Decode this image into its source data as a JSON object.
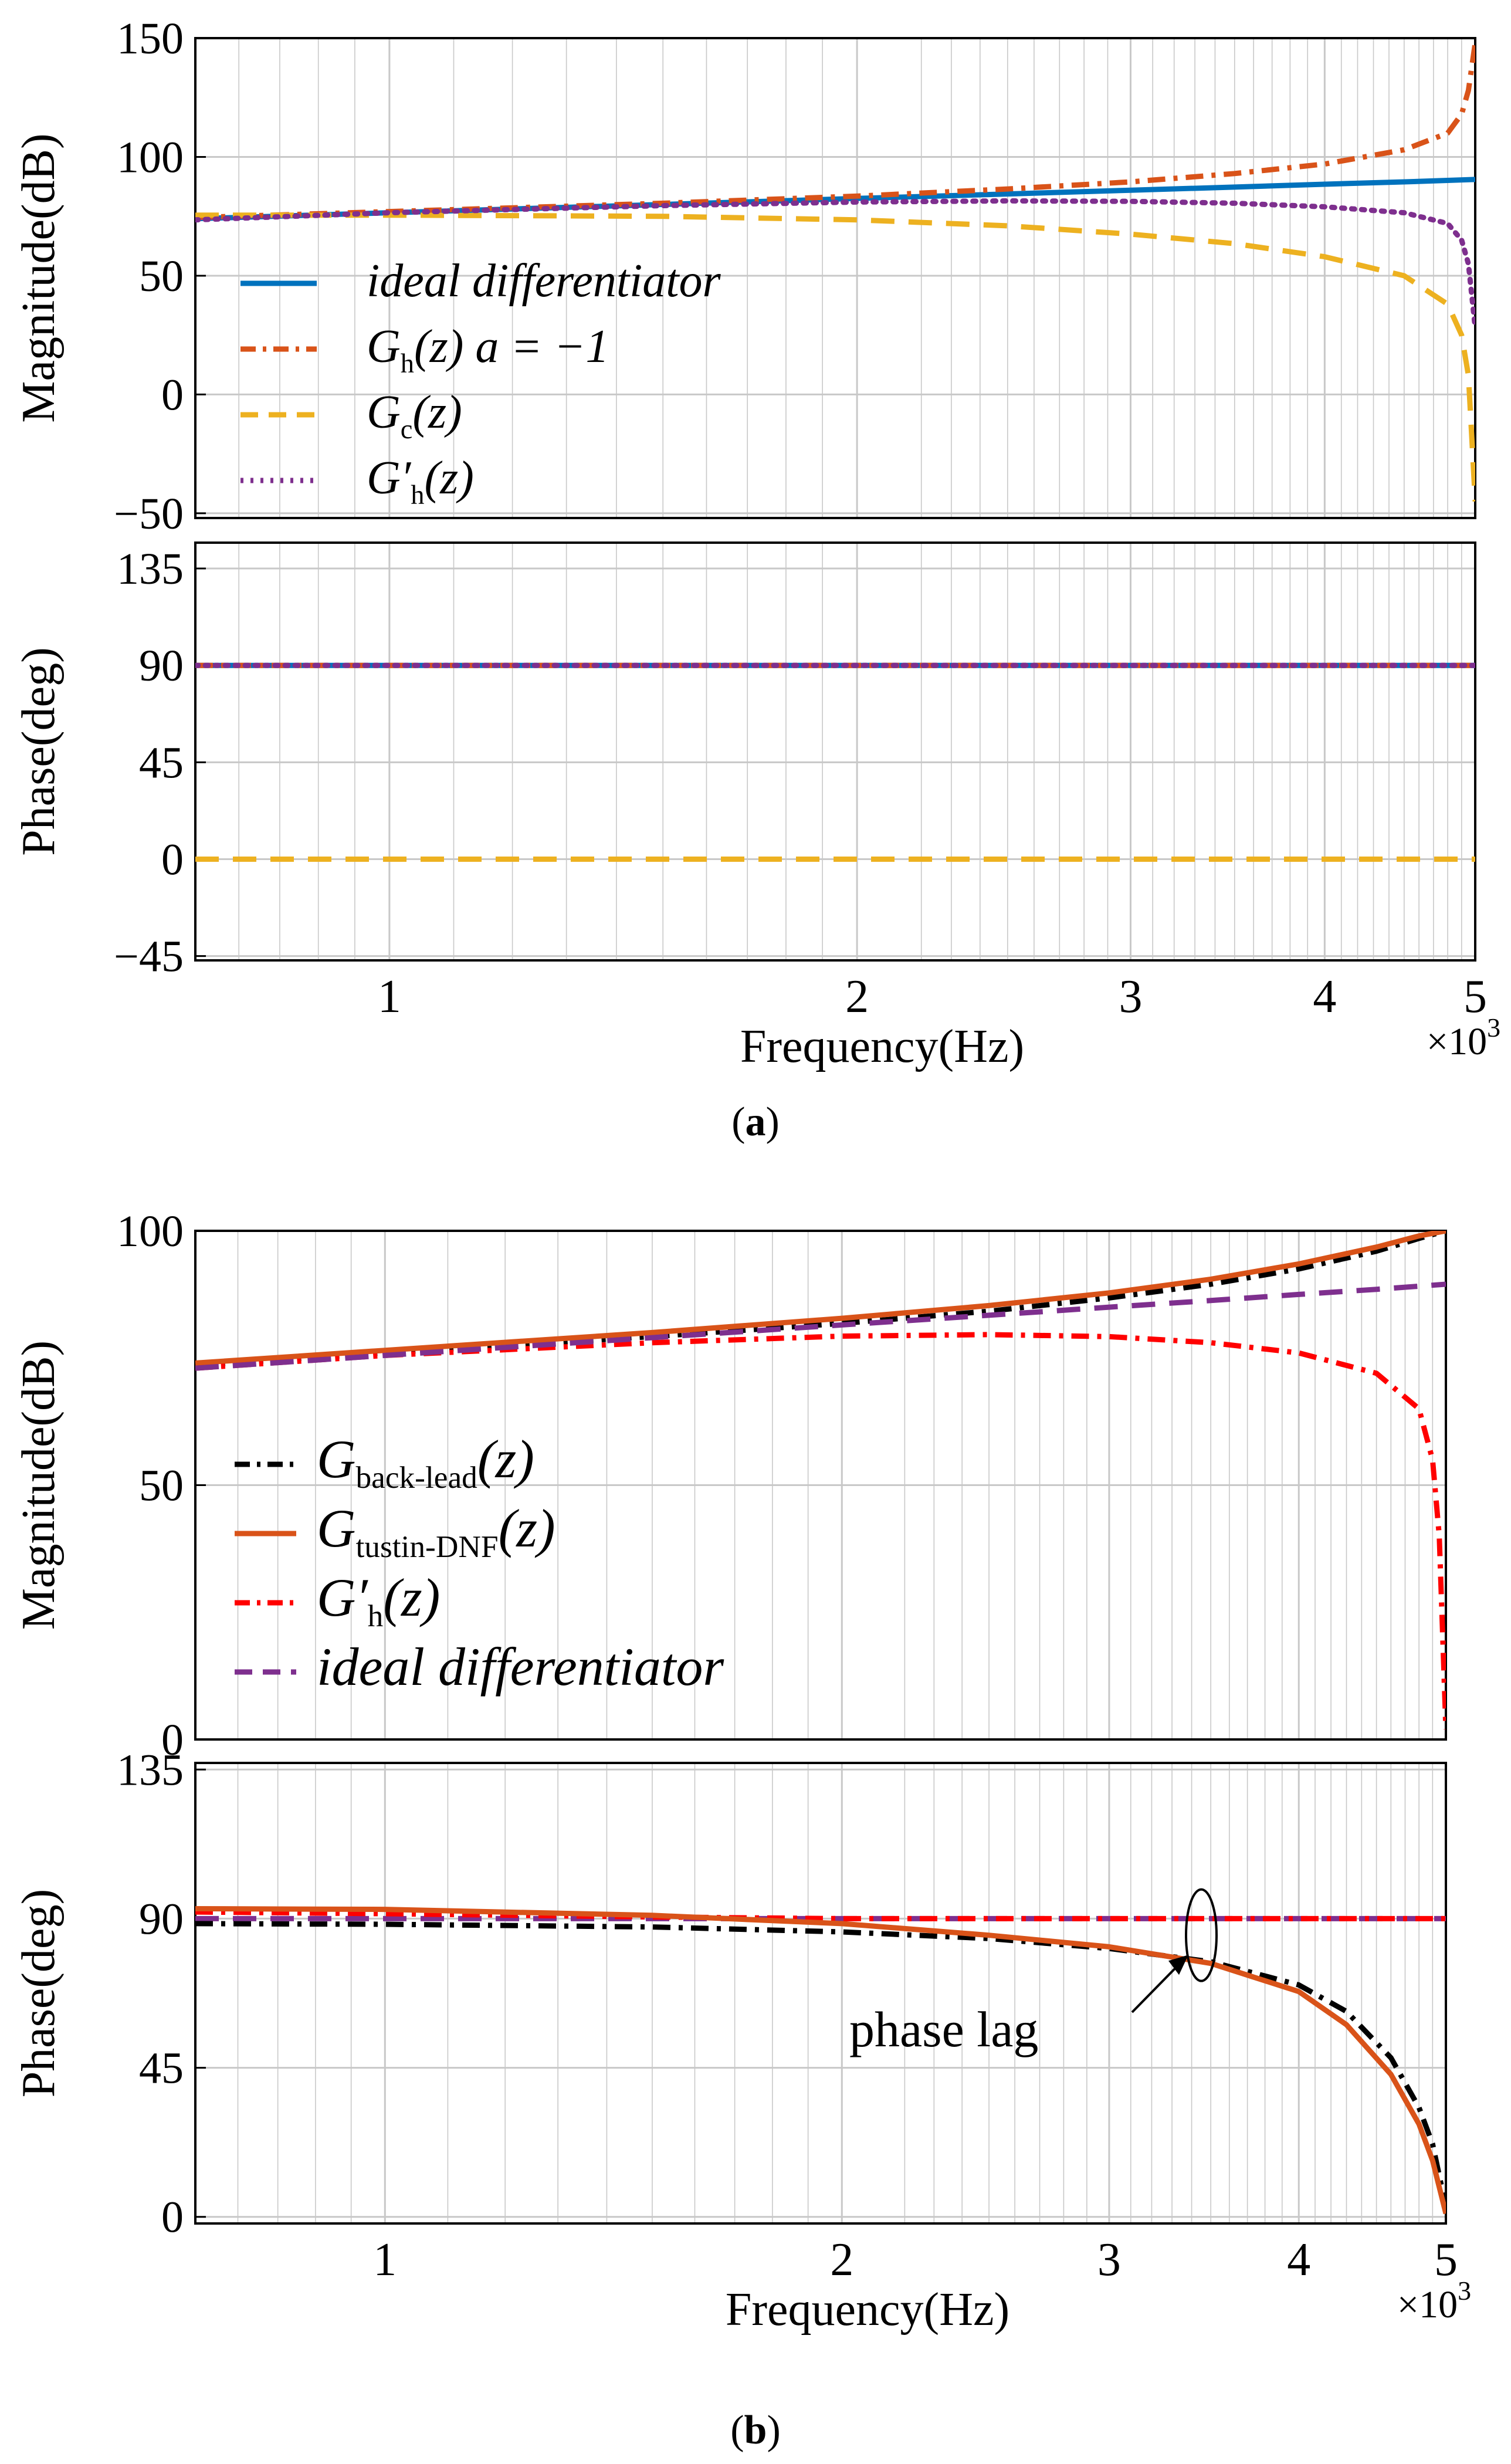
{
  "figure": {
    "panel_a_caption": "a",
    "panel_b_caption": "b"
  },
  "colors": {
    "ideal_a": "#0072BD",
    "gh_a": "#D95319",
    "gc_a": "#EDB120",
    "ghp_a": "#7E2F8E",
    "back_lead": "#000000",
    "tustin": "#D95319",
    "ghp_b": "#FF0000",
    "ideal_b": "#7E2F8E"
  },
  "chart_data": [
    {
      "panel": "a",
      "subplot": "magnitude",
      "type": "line",
      "ylabel": "Magnitude(dB)",
      "xscale": "log",
      "xlim": [
        0.75,
        5.0
      ],
      "x_unit_multiplier": "×10³",
      "xticks": [
        1,
        2,
        3,
        4,
        5
      ],
      "ylim": [
        -52,
        150
      ],
      "yticks": [
        {
          "value": -50,
          "label": "−50"
        },
        {
          "value": 0,
          "label": "0"
        },
        {
          "value": 50,
          "label": "50"
        },
        {
          "value": 100,
          "label": "100"
        },
        {
          "value": 150,
          "label": "150"
        }
      ],
      "grid": true,
      "legend_position": "bottom-left",
      "series": [
        {
          "key": "ideal",
          "legend_main": "ideal differentiator",
          "legend_sub": "",
          "legend_tail": "",
          "style": "solid",
          "color_key": "ideal_a",
          "x": [
            0.75,
            1.0,
            1.5,
            2.0,
            2.5,
            3.0,
            3.5,
            4.0,
            4.5,
            5.0
          ],
          "y": [
            74,
            76.5,
            80.0,
            82.5,
            84.4,
            86.0,
            87.3,
            88.5,
            89.5,
            90.5
          ]
        },
        {
          "key": "gh",
          "legend_main": "G",
          "legend_sub": "h",
          "legend_tail": "(z)  a = −1",
          "style": "dashdot",
          "color_key": "gh_a",
          "x": [
            0.75,
            1.0,
            1.5,
            2.0,
            2.5,
            3.0,
            3.5,
            4.0,
            4.5,
            4.8,
            4.9,
            4.95,
            5.0
          ],
          "y": [
            74.5,
            77,
            80.5,
            83.5,
            86.5,
            89.5,
            93,
            97,
            103,
            110,
            118,
            128,
            148
          ]
        },
        {
          "key": "gc",
          "legend_main": "G",
          "legend_sub": "c",
          "legend_tail": "(z)",
          "style": "dash",
          "color_key": "gc_a",
          "x": [
            0.75,
            1.0,
            1.5,
            2.0,
            2.5,
            3.0,
            3.5,
            4.0,
            4.5,
            4.8,
            4.9,
            4.95,
            5.0
          ],
          "y": [
            75.5,
            75.5,
            75,
            73.5,
            71,
            67.5,
            63.5,
            58,
            50,
            38,
            25,
            8,
            -45
          ]
        },
        {
          "key": "ghp",
          "legend_main": "G′",
          "legend_sub": "h",
          "legend_tail": "(z)",
          "style": "dot",
          "color_key": "ghp_a",
          "x": [
            0.75,
            1.0,
            1.5,
            2.0,
            2.5,
            3.0,
            3.5,
            4.0,
            4.5,
            4.8,
            4.9,
            4.95,
            5.0
          ],
          "y": [
            73.5,
            76.5,
            79.5,
            81,
            81.5,
            81.3,
            80.5,
            79,
            76.5,
            72,
            65,
            55,
            28
          ]
        }
      ]
    },
    {
      "panel": "a",
      "subplot": "phase",
      "type": "line",
      "ylabel": "Phase(deg)",
      "xlabel": "Frequency(Hz)",
      "xscale": "log",
      "xlim": [
        0.75,
        5.0
      ],
      "x_unit_multiplier": "×10³",
      "xticks": [
        1,
        2,
        3,
        4,
        5
      ],
      "ylim": [
        -47,
        147
      ],
      "yticks": [
        {
          "value": -45,
          "label": "−45"
        },
        {
          "value": 0,
          "label": "0"
        },
        {
          "value": 45,
          "label": "45"
        },
        {
          "value": 90,
          "label": "90"
        },
        {
          "value": 135,
          "label": "135"
        }
      ],
      "grid": true,
      "series": [
        {
          "key": "ideal",
          "style": "solid",
          "color_key": "ideal_a",
          "x": [
            0.75,
            5.0
          ],
          "y": [
            90,
            90
          ]
        },
        {
          "key": "gh",
          "style": "dashdot",
          "color_key": "gh_a",
          "x": [
            0.75,
            5.0
          ],
          "y": [
            90,
            90
          ]
        },
        {
          "key": "ghp",
          "style": "dot",
          "color_key": "ghp_a",
          "x": [
            0.75,
            5.0
          ],
          "y": [
            90,
            90
          ]
        },
        {
          "key": "gc",
          "style": "dash",
          "color_key": "gc_a",
          "x": [
            0.75,
            5.0
          ],
          "y": [
            0,
            0
          ]
        }
      ]
    },
    {
      "panel": "b",
      "subplot": "magnitude",
      "type": "line",
      "ylabel": "Magnitude(dB)",
      "xscale": "log",
      "xlim": [
        0.75,
        5.0
      ],
      "x_unit_multiplier": "×10³",
      "xticks": [
        1,
        2,
        3,
        4,
        5
      ],
      "ylim": [
        0,
        100
      ],
      "yticks": [
        {
          "value": 0,
          "label": "0"
        },
        {
          "value": 50,
          "label": "50"
        },
        {
          "value": 100,
          "label": "100"
        }
      ],
      "grid": true,
      "legend_position": "bottom-left",
      "series": [
        {
          "key": "back_lead",
          "legend_main": "G",
          "legend_sub": "back-lead",
          "legend_tail": "(z)",
          "style": "dashdot",
          "color_key": "back_lead",
          "x": [
            0.75,
            1.0,
            1.5,
            2.0,
            2.5,
            3.0,
            3.5,
            4.0,
            4.5,
            4.8,
            5.0
          ],
          "y": [
            73.5,
            76,
            79.2,
            81.8,
            84.2,
            86.8,
            89.5,
            92.5,
            96,
            98.5,
            100
          ]
        },
        {
          "key": "tustin",
          "legend_main": "G",
          "legend_sub": "tustin-DNF",
          "legend_tail": "(z)",
          "style": "solid",
          "color_key": "tustin",
          "x": [
            0.75,
            1.0,
            1.5,
            2.0,
            2.5,
            3.0,
            3.5,
            4.0,
            4.5,
            4.8,
            5.0
          ],
          "y": [
            74,
            76.5,
            80,
            82.8,
            85.3,
            87.8,
            90.5,
            93.5,
            96.8,
            99,
            100
          ]
        },
        {
          "key": "ghp",
          "legend_main": "G′",
          "legend_sub": "h",
          "legend_tail": "(z)",
          "style": "dashdot",
          "color_key": "ghp_b",
          "x": [
            0.75,
            1.0,
            1.5,
            2.0,
            2.5,
            3.0,
            3.5,
            4.0,
            4.5,
            4.8,
            4.9,
            4.95,
            5.0
          ],
          "y": [
            73,
            75.5,
            78,
            79.3,
            79.6,
            79.2,
            78,
            76,
            72,
            65,
            55,
            40,
            2
          ]
        },
        {
          "key": "ideal",
          "legend_main": "ideal differentiator",
          "legend_sub": "",
          "legend_tail": "",
          "style": "dash",
          "color_key": "ideal_b",
          "x": [
            0.75,
            1.0,
            1.5,
            2.0,
            2.5,
            3.0,
            3.5,
            4.0,
            4.5,
            5.0
          ],
          "y": [
            73,
            75.5,
            79,
            81.5,
            83.4,
            85,
            86.3,
            87.5,
            88.5,
            89.5
          ]
        }
      ]
    },
    {
      "panel": "b",
      "subplot": "phase",
      "type": "line",
      "ylabel": "Phase(deg)",
      "xlabel": "Frequency(Hz)",
      "xscale": "log",
      "xlim": [
        0.75,
        5.0
      ],
      "x_unit_multiplier": "×10³",
      "xticks": [
        1,
        2,
        3,
        4,
        5
      ],
      "ylim": [
        -2,
        137
      ],
      "yticks": [
        {
          "value": 0,
          "label": "0"
        },
        {
          "value": 45,
          "label": "45"
        },
        {
          "value": 90,
          "label": "90"
        },
        {
          "value": 135,
          "label": "135"
        }
      ],
      "grid": true,
      "annotation": {
        "text": "phase lag",
        "x": 3.45,
        "y": 82
      },
      "series": [
        {
          "key": "ideal",
          "style": "dash",
          "color_key": "ideal_b",
          "x": [
            0.75,
            5.0
          ],
          "y": [
            90,
            90
          ]
        },
        {
          "key": "ghp",
          "style": "dashdot",
          "color_key": "ghp_b",
          "x": [
            0.75,
            1.0,
            1.5,
            2.0,
            5.0
          ],
          "y": [
            92,
            91.5,
            90.5,
            90,
            90
          ]
        },
        {
          "key": "back_lead",
          "style": "dashdot",
          "color_key": "back_lead",
          "x": [
            0.75,
            1.0,
            1.5,
            2.0,
            2.5,
            3.0,
            3.5,
            4.0,
            4.3,
            4.6,
            4.8,
            4.9,
            5.0
          ],
          "y": [
            88.5,
            88.3,
            87.5,
            86,
            84,
            81,
            77,
            70,
            62,
            48,
            33,
            22,
            3
          ]
        },
        {
          "key": "tustin",
          "style": "solid",
          "color_key": "tustin",
          "x": [
            0.75,
            1.0,
            1.5,
            2.0,
            2.5,
            3.0,
            3.5,
            4.0,
            4.3,
            4.6,
            4.8,
            4.9,
            5.0
          ],
          "y": [
            93,
            92.8,
            91,
            88.5,
            85,
            81.5,
            76.5,
            68,
            58,
            43,
            28,
            17,
            1
          ]
        }
      ]
    }
  ]
}
